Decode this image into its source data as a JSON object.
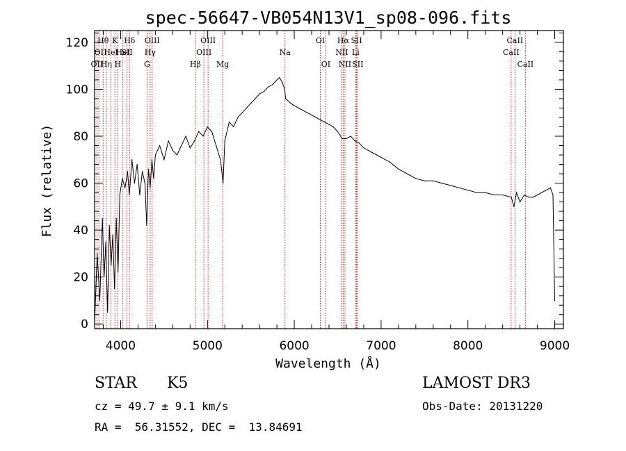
{
  "chart_data": {
    "type": "line",
    "title": "spec-56647-VB054N13V1_sp08-096.fits",
    "xlabel": "Wavelength (Å)",
    "ylabel": "Flux (relative)",
    "xlim": [
      3700,
      9100
    ],
    "ylim": [
      -2,
      125
    ],
    "x_ticks": [
      4000,
      5000,
      6000,
      7000,
      8000,
      9000
    ],
    "y_ticks": [
      0,
      20,
      40,
      60,
      80,
      100,
      120
    ],
    "line_color": "#000000",
    "marker_line_color": "#cc0000",
    "series": [
      {
        "x": [
          3700,
          3730,
          3760,
          3790,
          3810,
          3830,
          3850,
          3870,
          3890,
          3910,
          3930,
          3950,
          3970,
          3990,
          4020,
          4050,
          4080,
          4100,
          4130,
          4160,
          4190,
          4220,
          4250,
          4280,
          4300,
          4320,
          4340,
          4360,
          4380,
          4400,
          4450,
          4500,
          4550,
          4600,
          4650,
          4700,
          4750,
          4800,
          4850,
          4900,
          4950,
          5000,
          5050,
          5100,
          5150,
          5180,
          5200,
          5250,
          5300,
          5350,
          5400,
          5450,
          5500,
          5550,
          5600,
          5650,
          5700,
          5750,
          5800,
          5830,
          5860,
          5890,
          5900,
          5930,
          5960,
          6000,
          6050,
          6100,
          6150,
          6200,
          6250,
          6300,
          6350,
          6400,
          6450,
          6500,
          6550,
          6600,
          6650,
          6700,
          6750,
          6800,
          6850,
          6900,
          6950,
          7000,
          7100,
          7200,
          7300,
          7400,
          7500,
          7600,
          7700,
          7800,
          7900,
          8000,
          8100,
          8200,
          8300,
          8400,
          8500,
          8530,
          8560,
          8600,
          8650,
          8700,
          8750,
          8800,
          8850,
          8900,
          8950,
          8980,
          9000
        ],
        "values": [
          0,
          30,
          10,
          45,
          20,
          35,
          5,
          42,
          25,
          38,
          15,
          45,
          22,
          55,
          62,
          58,
          65,
          55,
          70,
          60,
          68,
          55,
          65,
          60,
          42,
          66,
          58,
          70,
          62,
          72,
          76,
          70,
          78,
          74,
          72,
          76,
          80,
          75,
          78,
          82,
          80,
          84,
          82,
          76,
          70,
          60,
          78,
          86,
          84,
          88,
          90,
          92,
          94,
          96,
          98,
          99,
          101,
          102,
          104,
          105,
          103,
          100,
          96,
          95,
          94,
          93,
          92,
          91,
          90,
          89,
          88,
          87,
          86,
          85,
          84,
          82,
          79,
          79,
          80,
          78,
          77,
          75,
          74,
          73,
          72,
          71,
          69,
          66,
          64,
          62,
          61,
          61,
          60,
          59,
          58,
          57,
          56,
          56,
          55,
          55,
          54,
          50,
          56,
          52,
          55,
          54,
          54,
          55,
          56,
          57,
          58,
          55,
          10
        ]
      }
    ],
    "lines": [
      {
        "x": 3727,
        "label": "OII",
        "row": 2
      },
      {
        "x": 3750,
        "label": "OI",
        "row": 1
      },
      {
        "x": 3798,
        "label": "Hθ",
        "row": 0
      },
      {
        "x": 3835,
        "label": "Hη",
        "row": 2
      },
      {
        "x": 3889,
        "label": "HeI",
        "row": 1
      },
      {
        "x": 3934,
        "label": "K",
        "row": 0
      },
      {
        "x": 3968,
        "label": "H",
        "row": 2
      },
      {
        "x": 4026,
        "label": "HeI",
        "row": 1
      },
      {
        "x": 4072,
        "label": "SII",
        "row": 1
      },
      {
        "x": 4102,
        "label": "Hδ",
        "row": 0
      },
      {
        "x": 4304,
        "label": "G",
        "row": 2
      },
      {
        "x": 4340,
        "label": "Hγ",
        "row": 1
      },
      {
        "x": 4363,
        "label": "OIII",
        "row": 0
      },
      {
        "x": 4861,
        "label": "Hβ",
        "row": 2
      },
      {
        "x": 4959,
        "label": "OIII",
        "row": 1
      },
      {
        "x": 5007,
        "label": "OIII",
        "row": 0
      },
      {
        "x": 5175,
        "label": "Mg",
        "row": 2
      },
      {
        "x": 5893,
        "label": "Na",
        "row": 1
      },
      {
        "x": 6300,
        "label": "OI",
        "row": 0
      },
      {
        "x": 6363,
        "label": "OI",
        "row": 2
      },
      {
        "x": 6548,
        "label": "NII",
        "row": 1
      },
      {
        "x": 6563,
        "label": "Hα",
        "row": 0
      },
      {
        "x": 6584,
        "label": "NII",
        "row": 2
      },
      {
        "x": 6707,
        "label": "Li",
        "row": 1
      },
      {
        "x": 6717,
        "label": "SII",
        "row": 0
      },
      {
        "x": 6731,
        "label": "SII",
        "row": 2
      },
      {
        "x": 8498,
        "label": "CaII",
        "row": 1
      },
      {
        "x": 8542,
        "label": "CaII",
        "row": 0
      },
      {
        "x": 8662,
        "label": "CaII",
        "row": 2
      }
    ]
  },
  "info": {
    "class": "STAR",
    "subclass": "K5",
    "survey": "LAMOST DR3",
    "cz": "cz = 49.7 ± 9.1 km/s",
    "obs_date": "Obs-Date: 20131220",
    "radec": "RA =  56.31552, DEC =  13.84691"
  }
}
